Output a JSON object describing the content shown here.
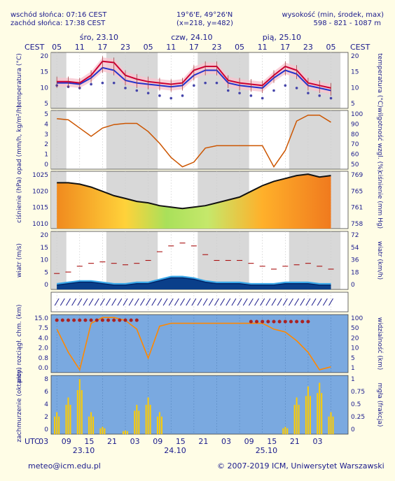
{
  "header": {
    "sunrise": "wschód słońca: 07:16 CEST",
    "sunset": "zachód słońca: 17:38 CEST",
    "coords": "19°6'E, 49°26'N",
    "grid": "(x=218, y=482)",
    "elev_label": "wysokość (min, środek, max)",
    "elev_values": "598 - 821 - 1087 m"
  },
  "top_axis": {
    "tz_left": "CEST",
    "tz_right": "CEST",
    "hours": [
      "05",
      "11",
      "17",
      "23",
      "05",
      "11",
      "17",
      "23",
      "05",
      "11",
      "17",
      "23",
      "05"
    ],
    "days": [
      "śro, 23.10",
      "czw, 24.10",
      "pią, 25.10"
    ]
  },
  "bottom_axis": {
    "tz": "UTC",
    "hours": [
      "03",
      "09",
      "15",
      "21",
      "03",
      "09",
      "15",
      "21",
      "03",
      "09",
      "15",
      "21",
      "03"
    ],
    "days": [
      "23.10",
      "24.10",
      "25.10"
    ]
  },
  "footer": {
    "email": "meteo@icm.edu.pl",
    "copyright": "© 2007-2019 ICM, Uniwersytet Warszawski"
  },
  "colors": {
    "background": "#fffde6",
    "text": "#1a1a8c",
    "temperature": "#cc0033",
    "precip": "#cc5500",
    "visibility": "#ff8800",
    "cloud": "#ffcc00"
  },
  "chart_data": [
    {
      "type": "line",
      "name": "temperature",
      "ylabel_left": "temperatura (°C)",
      "ylabel_right": "temperatura (°C)",
      "yticks_left": [
        "20",
        "15",
        "10",
        "5"
      ],
      "yticks_right": [
        "20",
        "15",
        "10",
        "5"
      ],
      "ylim": [
        0,
        22
      ],
      "x_hours": [
        0,
        3,
        6,
        9,
        12,
        15,
        18,
        21,
        24,
        27,
        30,
        33,
        36,
        39,
        42,
        45,
        48,
        51,
        54,
        57,
        60,
        63,
        66,
        69,
        72
      ],
      "series": [
        {
          "values": [
            10.5,
            10.5,
            10,
            13,
            18.5,
            18,
            13,
            11.5,
            10.5,
            10,
            9.5,
            10,
            15,
            16.5,
            16.5,
            11,
            10,
            9.5,
            9,
            13,
            16.5,
            15,
            10,
            9,
            8
          ]
        },
        {
          "values": [
            10,
            10,
            9.5,
            12,
            16,
            15,
            11,
            10,
            9.5,
            9,
            8.5,
            9,
            13,
            15,
            15,
            10,
            9,
            8.5,
            8,
            12,
            15,
            13.5,
            9,
            8,
            7
          ]
        },
        {
          "values": [
            9,
            8.5,
            8,
            9.5,
            10,
            10,
            8,
            7,
            6,
            5,
            4,
            5,
            9,
            10,
            10,
            7,
            6,
            5,
            4,
            7,
            9,
            8,
            6,
            5,
            4
          ]
        }
      ]
    },
    {
      "type": "line",
      "name": "precipitation-humidity",
      "ylabel_left": "opad (mm/h, kg/m²/h)",
      "ylabel_right": "wilgotność wzgl. (%)",
      "yticks_left": [
        "5",
        "4",
        "3",
        "2",
        "1",
        "0"
      ],
      "yticks_right": [
        "100",
        "90",
        "80",
        "70",
        "60",
        "50"
      ],
      "ylim": [
        50,
        100
      ],
      "x_hours": [
        0,
        3,
        6,
        9,
        12,
        15,
        18,
        21,
        24,
        27,
        30,
        33,
        36,
        39,
        42,
        45,
        48,
        51,
        54,
        57,
        60,
        63,
        66,
        69,
        72
      ],
      "values": [
        93,
        92,
        85,
        78,
        85,
        88,
        89,
        89,
        82,
        72,
        60,
        52,
        56,
        68,
        70,
        70,
        70,
        70,
        70,
        52,
        66,
        91,
        96,
        96,
        90
      ]
    },
    {
      "type": "area",
      "name": "pressure",
      "ylabel_left": "ciśnienie (hPa)",
      "ylabel_right": "ciśnienie (mm Hg)",
      "yticks_left": [
        "1025",
        "1020",
        "1015",
        "1010"
      ],
      "yticks_right": [
        "769",
        "765",
        "761",
        "758"
      ],
      "ylim": [
        1005,
        1025
      ],
      "x_hours": [
        0,
        3,
        6,
        9,
        12,
        15,
        18,
        21,
        24,
        27,
        30,
        33,
        36,
        39,
        42,
        45,
        48,
        51,
        54,
        57,
        60,
        63,
        66,
        69,
        72
      ],
      "values": [
        1021,
        1021,
        1020.5,
        1019.5,
        1018,
        1016.5,
        1015.5,
        1014.5,
        1014,
        1013,
        1012.5,
        1012,
        1012.5,
        1013,
        1014,
        1015,
        1016,
        1018,
        1020,
        1021.5,
        1022.5,
        1023.5,
        1024,
        1023,
        1023.5
      ]
    },
    {
      "type": "line",
      "name": "wind",
      "ylabel_left": "wiatr (m/s)",
      "ylabel_right": "wiatr (km/h)",
      "yticks_left": [
        "20",
        "15",
        "10",
        "5",
        "0"
      ],
      "yticks_right": [
        "72",
        "54",
        "36",
        "18",
        "0"
      ],
      "ylim": [
        0,
        20
      ],
      "x_hours": [
        0,
        3,
        6,
        9,
        12,
        15,
        18,
        21,
        24,
        27,
        30,
        33,
        36,
        39,
        42,
        45,
        48,
        51,
        54,
        57,
        60,
        63,
        66,
        69,
        72
      ],
      "series": [
        {
          "name": "gusts",
          "values": [
            5.5,
            6,
            8,
            9,
            9.5,
            9,
            8.5,
            9,
            10,
            13,
            15,
            16,
            15,
            12,
            10,
            10,
            10,
            9,
            8,
            7,
            8,
            8.5,
            9,
            8,
            7
          ]
        },
        {
          "name": "mean",
          "values": [
            1.5,
            2,
            2.5,
            2.5,
            2,
            1.5,
            1.5,
            2,
            2,
            3,
            4,
            4,
            3.5,
            2.5,
            2,
            2,
            2,
            1.5,
            1.5,
            1.5,
            2,
            2,
            2,
            1.5,
            1.5
          ]
        }
      ]
    },
    {
      "type": "scatter",
      "name": "cloud-base-visibility",
      "ylabel_left": "pion. rozciągł. chm. (km)",
      "ylabel_right": "widzialność (km)",
      "yticks_left": [
        "15.0",
        "7.5",
        "4.0",
        "2.0",
        "0.8",
        "0.0"
      ],
      "yticks_right": [
        "100",
        "50",
        "20",
        "10",
        "5",
        "1"
      ],
      "x_hours": [
        0,
        3,
        6,
        9,
        12,
        15,
        18,
        21,
        24,
        27,
        30,
        33,
        36,
        39,
        42,
        45,
        48,
        51,
        54,
        57,
        60,
        63,
        66,
        69,
        72
      ],
      "values": [
        30,
        14,
        2,
        34,
        38,
        38,
        36,
        30,
        10,
        32,
        34,
        34,
        34,
        34,
        34,
        34,
        34,
        34,
        34,
        30,
        28,
        22,
        14,
        2,
        4
      ]
    },
    {
      "type": "bar",
      "name": "cloud-cover",
      "ylabel_left": "zachmurzenie (oktanty)",
      "ylabel_right": "mgła (frakcja)",
      "yticks_left": [
        "8",
        "6",
        "4",
        "2",
        "0"
      ],
      "yticks_right": [
        "1",
        "0.75",
        "0.5",
        "0.25",
        "0"
      ],
      "ylim": [
        0,
        8
      ],
      "x_hours": [
        0,
        3,
        6,
        9,
        12,
        15,
        18,
        21,
        24,
        27,
        30,
        33,
        36,
        39,
        42,
        45,
        48,
        51,
        54,
        57,
        60,
        63,
        66,
        69,
        72
      ],
      "values": [
        3,
        5,
        7.5,
        3,
        1,
        0,
        0.5,
        4,
        5,
        3,
        0,
        0,
        0,
        0,
        0,
        0,
        0,
        0,
        0,
        0,
        1,
        5,
        6.5,
        7,
        3
      ]
    }
  ]
}
